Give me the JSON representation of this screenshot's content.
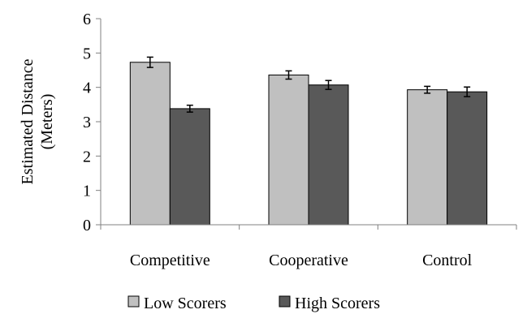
{
  "chart_data": {
    "type": "bar",
    "title": "",
    "xlabel": "",
    "ylabel": [
      "Estimated Distance",
      "(Meters)"
    ],
    "ylim": [
      0,
      6
    ],
    "yticks": [
      0,
      1,
      2,
      3,
      4,
      5,
      6
    ],
    "grid": false,
    "legend_position": "bottom",
    "categories": [
      "Competitive",
      "Cooperative",
      "Control"
    ],
    "series": [
      {
        "name": "Low Scorers",
        "color": "#c0c0c0",
        "values": [
          4.73,
          4.36,
          3.93
        ],
        "errors": [
          0.15,
          0.12,
          0.1
        ]
      },
      {
        "name": "High Scorers",
        "color": "#595959",
        "values": [
          3.38,
          4.07,
          3.87
        ],
        "errors": [
          0.1,
          0.13,
          0.14
        ]
      }
    ]
  }
}
